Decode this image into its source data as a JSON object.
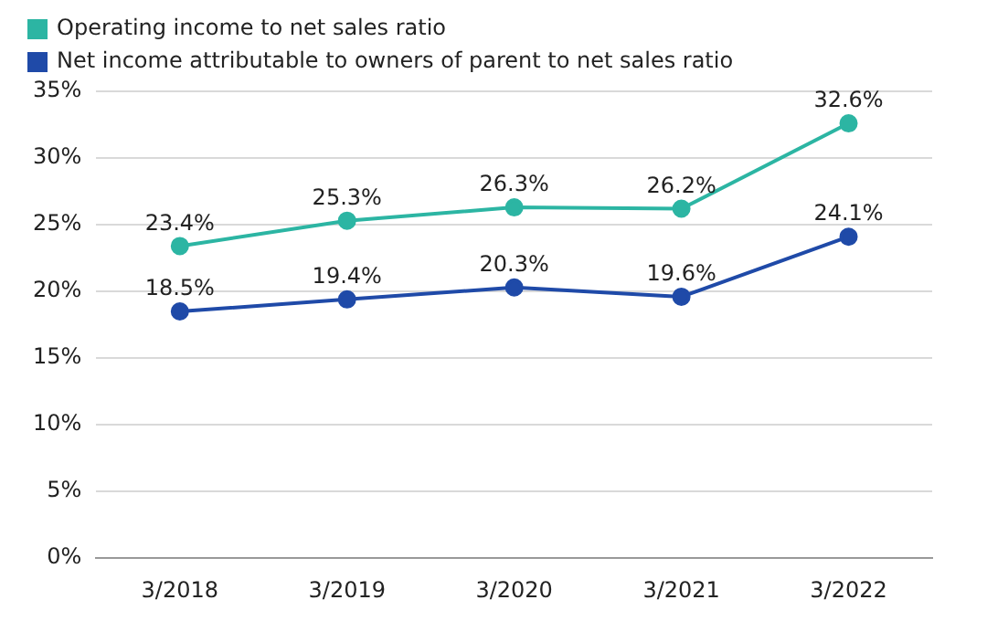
{
  "chart_data": {
    "type": "line",
    "categories": [
      "3/2018",
      "3/2019",
      "3/2020",
      "3/2021",
      "3/2022"
    ],
    "series": [
      {
        "name": "Operating income to net sales ratio",
        "color": "#2cb5a3",
        "values": [
          23.4,
          25.3,
          26.3,
          26.2,
          32.6
        ],
        "value_labels": [
          "23.4%",
          "25.3%",
          "26.3%",
          "26.2%",
          "32.6%"
        ]
      },
      {
        "name": "Net income attributable to owners of parent to net sales ratio",
        "color": "#1f4aa8",
        "values": [
          18.5,
          19.4,
          20.3,
          19.6,
          24.1
        ],
        "value_labels": [
          "18.5%",
          "19.4%",
          "20.3%",
          "19.6%",
          "24.1%"
        ]
      }
    ],
    "ylim": [
      0,
      35
    ],
    "yticks": [
      {
        "value": 0,
        "label": "0%"
      },
      {
        "value": 5,
        "label": "5%"
      },
      {
        "value": 10,
        "label": "10%"
      },
      {
        "value": 15,
        "label": "15%"
      },
      {
        "value": 20,
        "label": "20%"
      },
      {
        "value": 25,
        "label": "25%"
      },
      {
        "value": 30,
        "label": "30%"
      },
      {
        "value": 35,
        "label": "35%"
      }
    ],
    "grid": "y",
    "legend": "top left",
    "marker": "circle",
    "line_style": "solid"
  }
}
